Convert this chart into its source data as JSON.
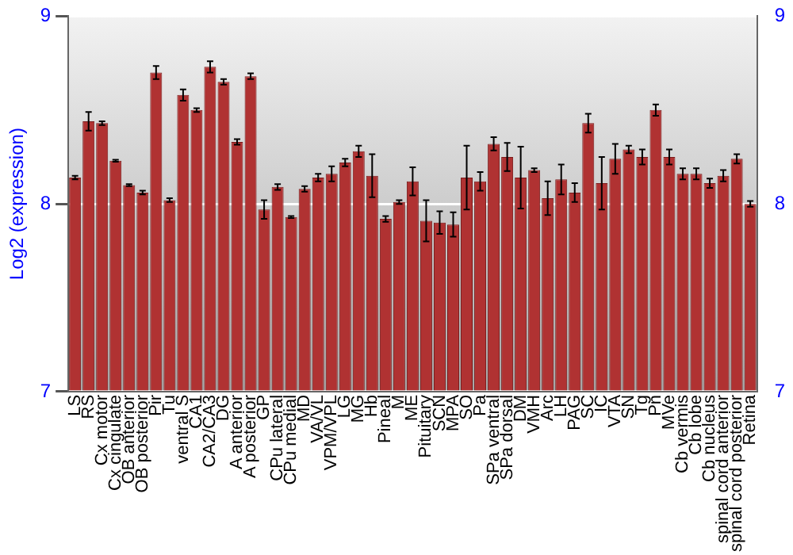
{
  "chart_data": {
    "type": "bar",
    "ylabel": "Log2 (expression)",
    "categories": [
      "LS",
      "RS",
      "Cx motor",
      "Cx cingulate",
      "OB anterior",
      "OB posterior",
      "Pir",
      "Tu",
      "ventral S",
      "CA1",
      "CA2/CA3",
      "DG",
      "A anterior",
      "A posterior",
      "GP",
      "CPu lateral",
      "CPu medial",
      "MD",
      "VA/VL",
      "VPM/VPL",
      "LG",
      "MG",
      "Hb",
      "Pineal",
      "M",
      "ME",
      "Pituitary",
      "SCN",
      "MPA",
      "SO",
      "Pa",
      "SPa ventral",
      "SPa dorsal",
      "DM",
      "VMH",
      "Arc",
      "LH",
      "PAG",
      "SC",
      "IC",
      "VTA",
      "SN",
      "Tg",
      "Pn",
      "MVe",
      "Cb vermis",
      "Cb lobe",
      "Cb nucleus",
      "spinal cord anterior",
      "spinal cord posterior",
      "Retina"
    ],
    "values": [
      8.14,
      8.44,
      8.43,
      8.23,
      8.1,
      8.06,
      8.7,
      8.02,
      8.58,
      8.5,
      8.73,
      8.65,
      8.33,
      8.68,
      7.97,
      8.09,
      7.93,
      8.08,
      8.14,
      8.16,
      8.22,
      8.28,
      8.15,
      7.92,
      8.01,
      8.12,
      7.91,
      7.9,
      7.89,
      8.14,
      8.12,
      8.32,
      8.25,
      8.14,
      8.18,
      8.03,
      8.13,
      8.06,
      8.43,
      8.11,
      8.24,
      8.29,
      8.25,
      8.5,
      8.25,
      8.16,
      8.16,
      8.11,
      8.15,
      8.24,
      8.0
    ],
    "errors": [
      0.01,
      0.05,
      0.01,
      0.005,
      0.005,
      0.01,
      0.035,
      0.01,
      0.03,
      0.01,
      0.03,
      0.015,
      0.015,
      0.015,
      0.05,
      0.015,
      0.005,
      0.015,
      0.02,
      0.04,
      0.02,
      0.03,
      0.115,
      0.015,
      0.01,
      0.075,
      0.11,
      0.06,
      0.065,
      0.17,
      0.05,
      0.035,
      0.075,
      0.165,
      0.01,
      0.09,
      0.08,
      0.05,
      0.05,
      0.14,
      0.08,
      0.02,
      0.04,
      0.03,
      0.04,
      0.03,
      0.03,
      0.025,
      0.03,
      0.025,
      0.015
    ],
    "color": "#b03232",
    "ylim": [
      7,
      9
    ],
    "yticks": [
      7,
      8,
      9
    ],
    "y2lim": [
      7,
      9
    ],
    "y2ticks": [
      7,
      8,
      9
    ],
    "grid": "y",
    "legend": false
  }
}
